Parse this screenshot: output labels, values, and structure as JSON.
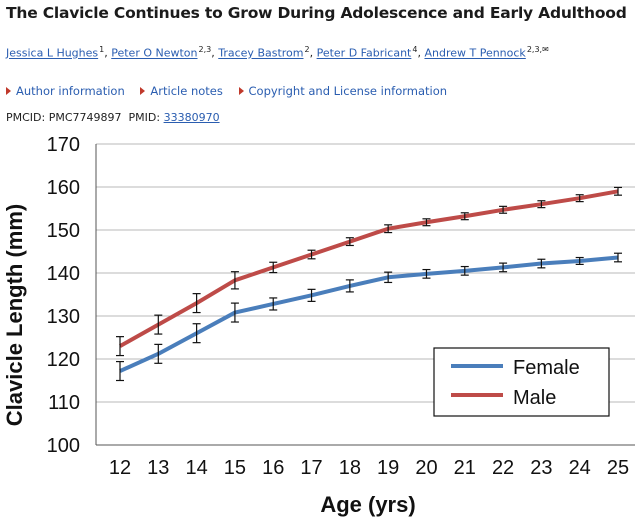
{
  "article": {
    "title": "The Clavicle Continues to Grow During Adolescence and Early Adulthood",
    "authors": [
      {
        "name": "Jessica L Hughes",
        "aff": "1"
      },
      {
        "name": "Peter O Newton",
        "aff": "2,3"
      },
      {
        "name": "Tracey Bastrom",
        "aff": "2"
      },
      {
        "name": "Peter D Fabricant",
        "aff": "4"
      },
      {
        "name": "Andrew T Pennock",
        "aff": "2,3,✉"
      }
    ],
    "links": [
      "Author information",
      "Article notes",
      "Copyright and License information"
    ],
    "pmcid_label": "PMCID:",
    "pmcid": "PMC7749897",
    "pmid_label": "PMID:",
    "pmid": "33380970"
  },
  "colors": {
    "female": "#4a7ebb",
    "male": "#be4b48",
    "link": "#2a5db0"
  },
  "chart_data": {
    "type": "line",
    "title": "",
    "xlabel": "Age (yrs)",
    "ylabel": "Clavicle Length (mm)",
    "x": [
      12,
      13,
      14,
      15,
      16,
      17,
      18,
      19,
      20,
      21,
      22,
      23,
      24,
      25
    ],
    "xticks": [
      "12",
      "13",
      "14",
      "15",
      "16",
      "17",
      "18",
      "19",
      "20",
      "21",
      "22",
      "23",
      "24",
      "25"
    ],
    "yticks": [
      "170",
      "160",
      "150",
      "140",
      "130",
      "120",
      "110",
      "100"
    ],
    "ylim": [
      100,
      170
    ],
    "legend_position": "bottom-right",
    "series": [
      {
        "name": "Female",
        "values": [
          117.2,
          121.2,
          126.0,
          130.8,
          132.8,
          134.8,
          137.0,
          139.0,
          139.8,
          140.5,
          141.3,
          142.2,
          142.8,
          143.6
        ],
        "errors": [
          2.2,
          2.2,
          2.2,
          2.2,
          1.4,
          1.4,
          1.4,
          1.2,
          1.0,
          1.0,
          1.0,
          1.0,
          0.8,
          1.0
        ]
      },
      {
        "name": "Male",
        "values": [
          123.0,
          128.0,
          133.0,
          138.3,
          141.3,
          144.3,
          147.3,
          150.3,
          151.8,
          153.2,
          154.7,
          156.0,
          157.4,
          159.0
        ],
        "errors": [
          2.2,
          2.2,
          2.2,
          2.0,
          1.2,
          1.0,
          0.9,
          0.9,
          0.8,
          0.8,
          0.8,
          0.8,
          0.8,
          0.9
        ]
      }
    ]
  }
}
